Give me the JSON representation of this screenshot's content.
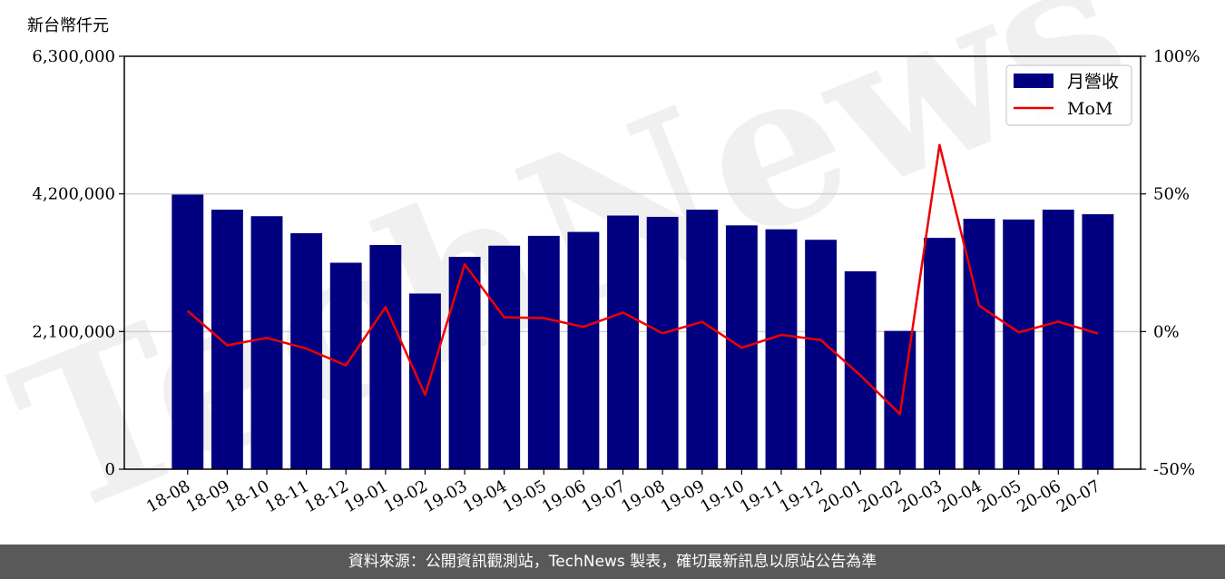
{
  "chart_data": {
    "type": "bar",
    "unit_label": "新台幣仟元",
    "categories": [
      "18-08",
      "18-09",
      "18-10",
      "18-11",
      "18-12",
      "19-01",
      "19-02",
      "19-03",
      "19-04",
      "19-05",
      "19-06",
      "19-07",
      "19-08",
      "19-09",
      "19-10",
      "19-11",
      "19-12",
      "20-01",
      "20-02",
      "20-03",
      "20-04",
      "20-05",
      "20-06",
      "20-07"
    ],
    "series": [
      {
        "name": "月營收",
        "axis": "left",
        "kind": "bar",
        "color": "#000080",
        "values": [
          4190000,
          3960000,
          3860000,
          3600000,
          3150000,
          3420000,
          2680000,
          3240000,
          3410000,
          3560000,
          3620000,
          3870000,
          3850000,
          3960000,
          3720000,
          3660000,
          3500000,
          3020000,
          2110000,
          3530000,
          3820000,
          3810000,
          3960000,
          3890000
        ]
      },
      {
        "name": "MoM",
        "axis": "right",
        "kind": "line",
        "color": "#ee0000",
        "values": [
          7.5,
          -5,
          -2.3,
          -6.2,
          -12.3,
          8.9,
          -23,
          24.4,
          5.2,
          4.9,
          1.7,
          6.9,
          -0.6,
          3.5,
          -5.9,
          -1.2,
          -3.1,
          -15.9,
          -30,
          67.8,
          9.4,
          -0.3,
          3.6,
          -0.7
        ]
      }
    ],
    "y_left": {
      "ylim": [
        0,
        6300000
      ],
      "ticks": [
        0,
        2100000,
        4200000,
        6300000
      ],
      "tick_labels": [
        "0",
        "2,100,000",
        "4,200,000",
        "6,300,000"
      ]
    },
    "y_right": {
      "ylim": [
        -50,
        100
      ],
      "ticks": [
        -50,
        0,
        50,
        100
      ],
      "tick_labels": [
        "-50%",
        "0%",
        "50%",
        "100%"
      ]
    },
    "grid": "horizontal",
    "legend_position": "top-right",
    "watermark": "TechNews"
  },
  "footer": {
    "text": "資料來源：公開資訊觀測站，TechNews 製表，確切最新訊息以原站公告為準"
  }
}
